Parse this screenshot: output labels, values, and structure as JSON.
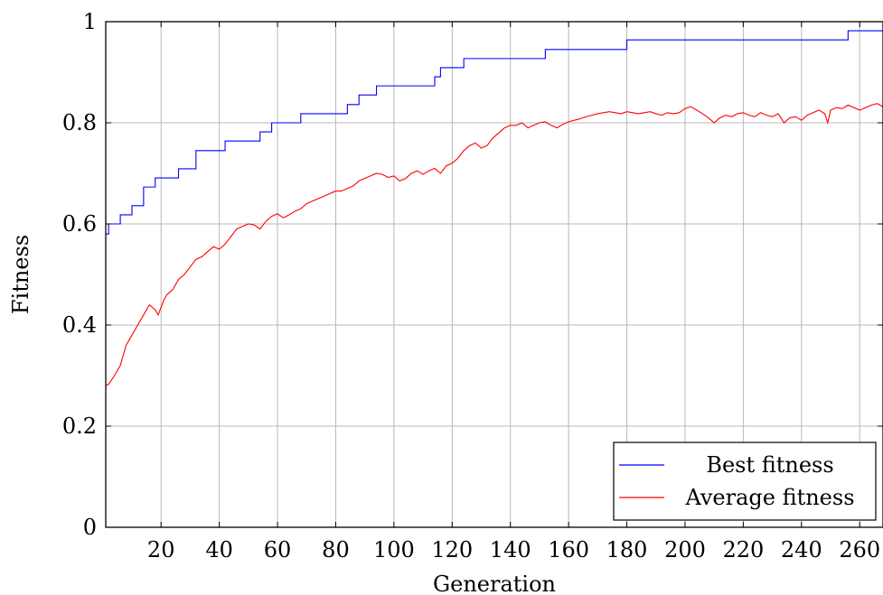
{
  "chart_data": {
    "type": "line",
    "xlabel": "Generation",
    "ylabel": "Fitness",
    "xlim": [
      1,
      268
    ],
    "ylim": [
      0,
      1
    ],
    "xticks": [
      20,
      40,
      60,
      80,
      100,
      120,
      140,
      160,
      180,
      200,
      220,
      240,
      260
    ],
    "xtick_labels": [
      "20",
      "40",
      "60",
      "80",
      "100",
      "120",
      "140",
      "160",
      "180",
      "200",
      "220",
      "240",
      "260"
    ],
    "yticks": [
      0,
      0.2,
      0.4,
      0.6,
      0.8,
      1
    ],
    "ytick_labels": [
      "0",
      "0.2",
      "0.4",
      "0.6",
      "0.8",
      "1"
    ],
    "grid": true,
    "legend_position": "bottom-right",
    "series": [
      {
        "name": "Best fitness",
        "color": "#0000ff",
        "step": true,
        "x": [
          1,
          2,
          6,
          10,
          14,
          18,
          26,
          32,
          42,
          54,
          58,
          68,
          82,
          84,
          88,
          94,
          108,
          114,
          116,
          124,
          136,
          152,
          166,
          180,
          200,
          240,
          256,
          268
        ],
        "y": [
          0.58,
          0.6,
          0.618,
          0.636,
          0.673,
          0.691,
          0.709,
          0.745,
          0.764,
          0.782,
          0.8,
          0.818,
          0.818,
          0.836,
          0.855,
          0.873,
          0.873,
          0.891,
          0.909,
          0.927,
          0.927,
          0.945,
          0.945,
          0.964,
          0.964,
          0.964,
          0.982,
          0.982
        ]
      },
      {
        "name": "Average fitness",
        "color": "#ff0000",
        "step": false,
        "x": [
          1,
          2,
          4,
          6,
          8,
          10,
          12,
          14,
          16,
          18,
          19,
          21,
          22,
          24,
          26,
          28,
          30,
          32,
          34,
          36,
          38,
          40,
          42,
          44,
          46,
          48,
          50,
          52,
          54,
          56,
          58,
          60,
          62,
          64,
          66,
          68,
          70,
          72,
          74,
          76,
          78,
          80,
          82,
          84,
          86,
          88,
          90,
          92,
          94,
          96,
          98,
          100,
          102,
          104,
          106,
          108,
          110,
          112,
          114,
          116,
          118,
          120,
          122,
          124,
          126,
          128,
          130,
          132,
          134,
          136,
          138,
          140,
          142,
          144,
          146,
          148,
          150,
          152,
          154,
          156,
          158,
          160,
          162,
          164,
          166,
          168,
          170,
          172,
          174,
          176,
          178,
          180,
          182,
          184,
          186,
          188,
          190,
          192,
          194,
          196,
          198,
          200,
          202,
          204,
          206,
          208,
          210,
          212,
          214,
          216,
          218,
          220,
          222,
          224,
          226,
          228,
          230,
          232,
          234,
          236,
          238,
          240,
          242,
          244,
          246,
          248,
          249,
          250,
          252,
          254,
          256,
          258,
          260,
          262,
          264,
          266,
          268
        ],
        "y": [
          0.28,
          0.283,
          0.3,
          0.32,
          0.36,
          0.38,
          0.4,
          0.42,
          0.44,
          0.43,
          0.42,
          0.45,
          0.46,
          0.47,
          0.49,
          0.5,
          0.515,
          0.53,
          0.535,
          0.545,
          0.555,
          0.55,
          0.56,
          0.575,
          0.59,
          0.595,
          0.6,
          0.598,
          0.59,
          0.605,
          0.615,
          0.62,
          0.612,
          0.618,
          0.625,
          0.63,
          0.64,
          0.645,
          0.65,
          0.655,
          0.66,
          0.665,
          0.665,
          0.67,
          0.675,
          0.685,
          0.69,
          0.695,
          0.7,
          0.698,
          0.692,
          0.695,
          0.685,
          0.69,
          0.7,
          0.705,
          0.698,
          0.705,
          0.71,
          0.7,
          0.715,
          0.72,
          0.73,
          0.745,
          0.755,
          0.76,
          0.75,
          0.755,
          0.77,
          0.78,
          0.79,
          0.795,
          0.795,
          0.8,
          0.79,
          0.795,
          0.8,
          0.802,
          0.795,
          0.79,
          0.797,
          0.802,
          0.805,
          0.808,
          0.812,
          0.815,
          0.818,
          0.82,
          0.822,
          0.82,
          0.818,
          0.822,
          0.82,
          0.818,
          0.82,
          0.822,
          0.818,
          0.815,
          0.82,
          0.818,
          0.82,
          0.828,
          0.832,
          0.825,
          0.818,
          0.81,
          0.8,
          0.81,
          0.815,
          0.812,
          0.818,
          0.82,
          0.815,
          0.812,
          0.82,
          0.815,
          0.812,
          0.818,
          0.8,
          0.81,
          0.812,
          0.805,
          0.815,
          0.82,
          0.825,
          0.818,
          0.8,
          0.825,
          0.83,
          0.828,
          0.835,
          0.83,
          0.825,
          0.83,
          0.835,
          0.838,
          0.832
        ]
      }
    ]
  }
}
